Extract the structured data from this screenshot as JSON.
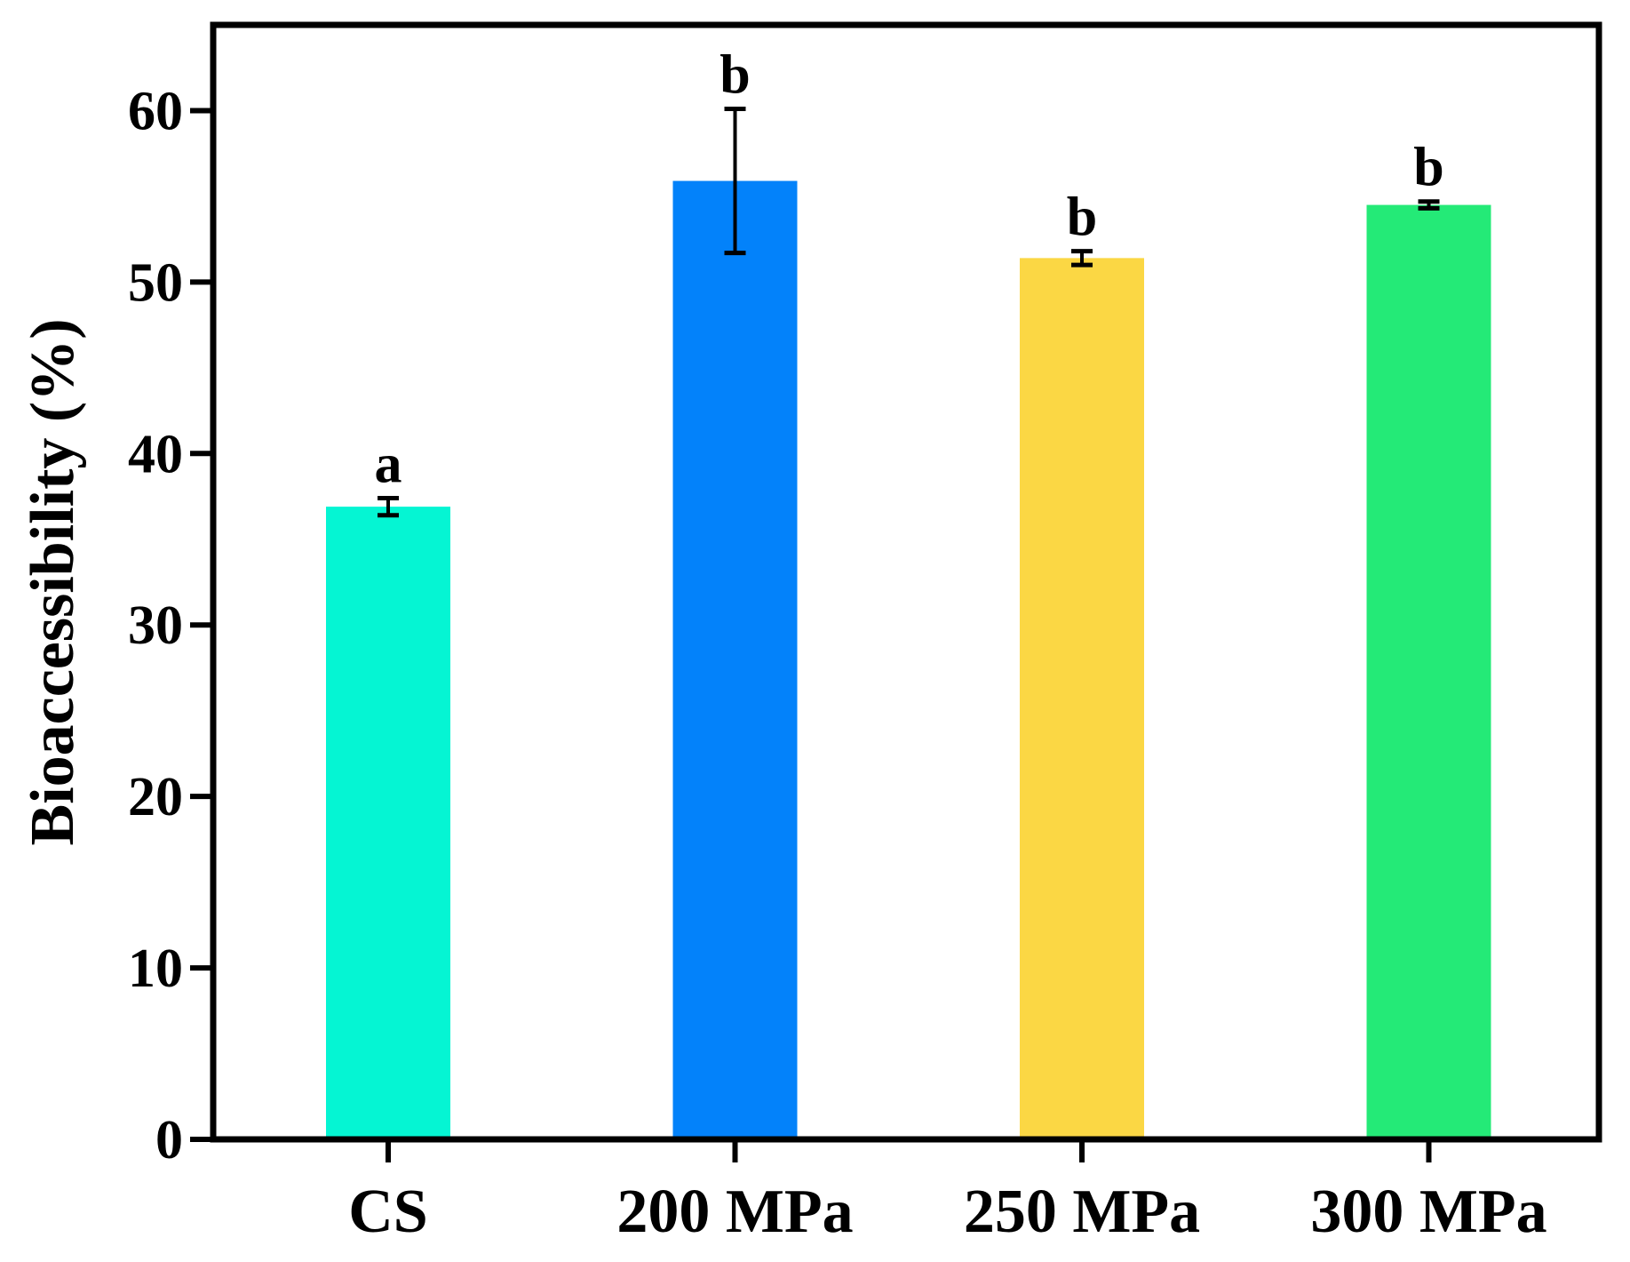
{
  "chart_data": {
    "type": "bar",
    "categories": [
      "CS",
      "200 MPa",
      "250 MPa",
      "300 MPa"
    ],
    "values": [
      36.9,
      55.9,
      51.4,
      54.5
    ],
    "errors": [
      0.5,
      4.2,
      0.4,
      0.2
    ],
    "significance": [
      "a",
      "b",
      "b",
      "b"
    ],
    "colors": [
      "#05f5d3",
      "#0382fa",
      "#fbd744",
      "#24ea77"
    ],
    "title": "",
    "xlabel": "",
    "ylabel": "Bioaccessibility (%)",
    "ylim": [
      0,
      65
    ],
    "yticks": [
      0,
      10,
      20,
      30,
      40,
      50,
      60
    ],
    "grid": false,
    "legend": "none"
  }
}
